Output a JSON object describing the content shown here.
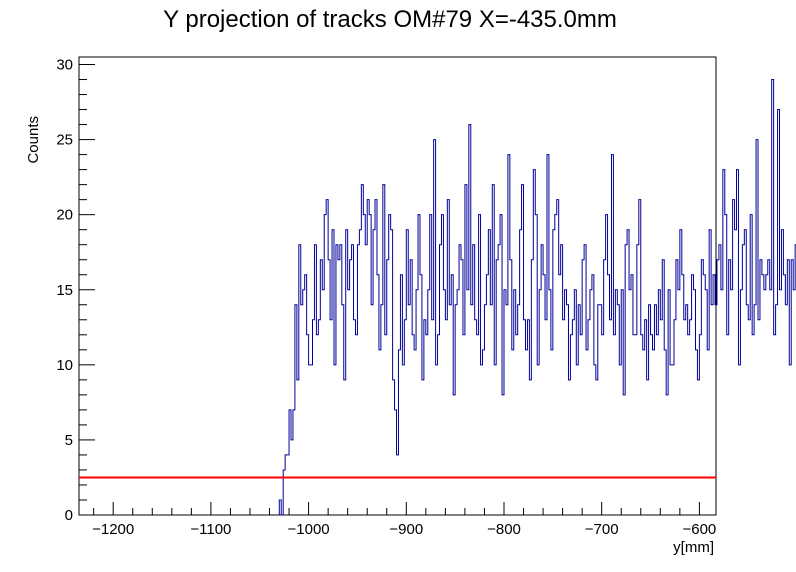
{
  "chart_data": {
    "type": "histogram",
    "title": "Y projection of tracks OM#79 X=-435.0mm",
    "xlabel": "y[mm]",
    "ylabel": "Counts",
    "xlim": [
      -1235,
      -583
    ],
    "ylim": [
      0,
      30.5
    ],
    "x_ticks": [
      -1200,
      -1100,
      -1000,
      -900,
      -800,
      -700,
      -600
    ],
    "x_tick_labels": [
      "−1200",
      "−1100",
      "−1000",
      "−900",
      "−800",
      "−700",
      "−600"
    ],
    "y_ticks": [
      0,
      5,
      10,
      15,
      20,
      25,
      30
    ],
    "y_tick_labels": [
      "0",
      "5",
      "10",
      "15",
      "20",
      "25",
      "30"
    ],
    "bin_width": 2,
    "x_start": -1030,
    "series": [
      {
        "values": [
          1,
          0,
          3,
          4,
          4,
          7,
          5,
          7,
          14,
          9,
          18,
          14,
          15,
          16,
          12,
          10,
          10,
          13,
          18,
          12,
          13,
          17,
          15,
          20,
          21,
          17,
          13,
          19,
          10,
          18,
          17,
          18,
          14,
          9,
          19,
          15,
          17,
          18,
          13,
          12,
          18,
          19,
          22,
          20,
          18,
          21,
          20,
          14,
          19,
          21,
          16,
          11,
          14,
          22,
          12,
          17,
          20,
          19,
          9,
          7,
          4,
          11,
          16,
          10,
          13,
          19,
          14,
          17,
          12,
          11,
          15,
          20,
          16,
          9,
          13,
          12,
          15,
          20,
          13,
          25,
          10,
          12,
          18,
          20,
          15,
          13,
          21,
          14,
          16,
          8,
          14,
          15,
          18,
          17,
          12,
          22,
          15,
          26,
          14,
          18,
          13,
          12,
          20,
          10,
          11,
          14,
          16,
          19,
          14,
          22,
          10,
          17,
          18,
          20,
          8,
          15,
          14,
          24,
          17,
          11,
          15,
          12,
          14,
          19,
          22,
          13,
          11,
          13,
          9,
          17,
          23,
          20,
          10,
          15,
          18,
          16,
          13,
          24,
          15,
          11,
          19,
          20,
          21,
          16,
          18,
          13,
          15,
          14,
          9,
          12,
          13,
          15,
          10,
          14,
          12,
          17,
          18,
          11,
          13,
          15,
          16,
          10,
          9,
          14,
          14,
          12,
          17,
          20,
          16,
          13,
          24,
          12,
          15,
          14,
          10,
          15,
          8,
          18,
          19,
          15,
          16,
          12,
          12,
          18,
          21,
          12,
          11,
          13,
          9,
          14,
          12,
          11,
          14,
          12,
          15,
          13,
          17,
          11,
          8,
          15,
          10,
          10,
          13,
          17,
          15,
          19,
          16,
          13,
          14,
          12,
          13,
          16,
          15,
          11,
          9,
          12,
          17,
          16,
          15,
          11,
          19,
          14,
          16,
          14,
          17,
          18,
          15,
          23,
          20,
          12,
          17,
          15,
          21,
          19,
          23,
          10,
          15,
          18,
          19,
          14,
          13,
          20,
          12,
          14,
          25,
          13,
          17,
          16,
          15,
          16,
          17,
          15,
          29,
          12,
          14,
          27,
          15,
          19,
          16,
          14,
          17,
          10,
          17,
          15,
          18,
          15,
          12,
          17,
          20,
          14,
          11,
          12,
          18,
          15,
          9,
          17,
          16,
          13,
          17,
          15,
          17,
          18,
          24,
          16,
          14,
          15,
          19,
          16,
          14,
          25,
          10,
          13,
          14,
          17,
          12,
          8,
          10,
          17,
          15,
          19,
          13,
          15,
          11,
          9,
          18,
          16,
          15,
          13,
          9,
          14,
          12,
          22,
          12,
          15,
          13,
          17,
          15,
          9,
          12,
          15,
          16,
          11,
          17,
          14,
          16,
          15,
          17,
          9,
          12,
          14,
          18,
          14,
          12,
          15,
          16,
          16,
          12,
          17,
          15,
          19,
          14,
          18,
          16,
          11,
          15,
          13,
          16,
          14,
          17,
          15,
          13,
          11,
          11,
          15,
          16,
          17,
          13,
          14,
          18,
          12,
          10,
          15,
          13,
          16,
          12,
          14,
          15,
          17,
          11,
          18,
          13,
          19,
          19,
          15,
          12,
          8,
          11,
          15,
          14,
          17,
          12,
          19,
          16,
          17,
          15,
          19,
          16,
          17,
          15,
          19,
          16,
          18,
          15,
          17,
          16,
          15,
          17,
          16,
          15,
          16,
          17,
          15,
          16,
          17,
          15,
          16,
          15,
          17,
          16,
          15,
          16,
          17,
          15,
          16,
          15,
          14,
          12,
          10,
          16,
          15,
          17,
          15,
          14,
          16,
          15,
          0,
          1,
          0,
          1,
          0,
          0,
          1,
          0
        ],
        "color": "#000099"
      }
    ],
    "threshold": {
      "value": 2.5,
      "color": "#ff0000"
    },
    "frame_color": "#000000",
    "grid": false
  }
}
